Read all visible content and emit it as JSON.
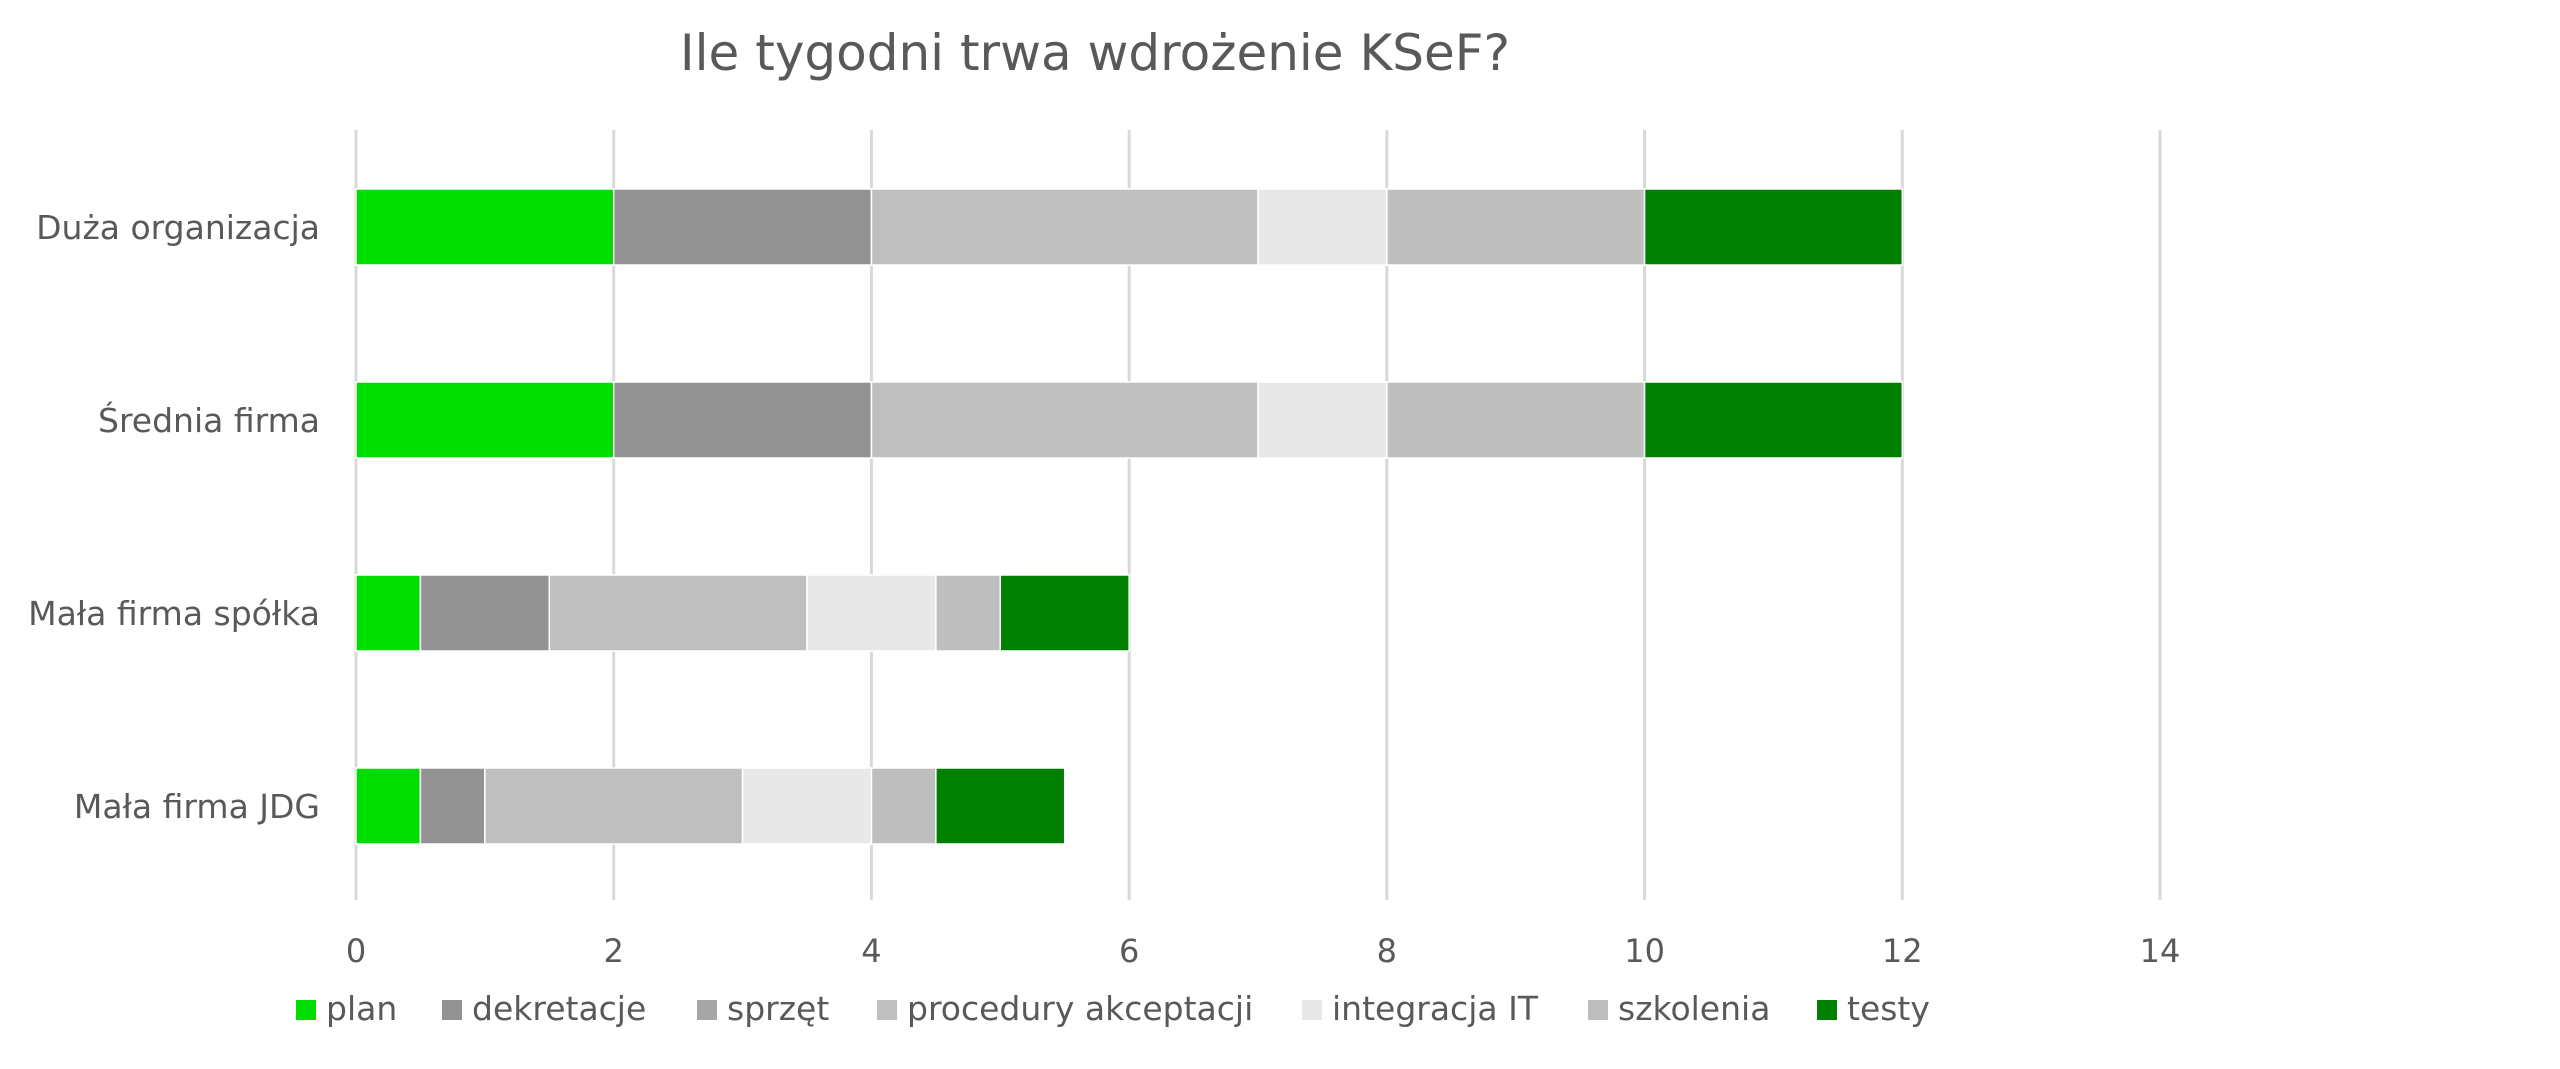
{
  "chart_data": {
    "type": "bar",
    "orientation": "horizontal",
    "stacked": true,
    "title": "Ile tygodni trwa wdrożenie KSeF?",
    "categories": [
      "Duża organizacja",
      "Średnia firma",
      "Mała firma spółka",
      "Mała firma JDG"
    ],
    "series": [
      {
        "name": "plan",
        "color": "#00dd00",
        "values": [
          2,
          2,
          0.5,
          0.5
        ]
      },
      {
        "name": "dekretacje",
        "color": "#929292",
        "values": [
          2,
          2,
          1,
          0.5
        ]
      },
      {
        "name": "sprzęt",
        "color": "#a6a6a6",
        "values": [
          0,
          0,
          0,
          0
        ]
      },
      {
        "name": "procedury akceptacji",
        "color": "#bfbfbf",
        "values": [
          3,
          3,
          2,
          2
        ]
      },
      {
        "name": "integracja IT",
        "color": "#e8e8e8",
        "values": [
          1,
          1,
          1,
          1
        ]
      },
      {
        "name": "szkolenia",
        "color": "#bebebe",
        "values": [
          2,
          2,
          0.5,
          0.5
        ]
      },
      {
        "name": "testy",
        "color": "#008000",
        "values": [
          2,
          2,
          1,
          1
        ]
      }
    ],
    "xlim": [
      0,
      14
    ],
    "xticks": [
      "0",
      "2",
      "4",
      "6",
      "8",
      "10",
      "12",
      "14"
    ],
    "grid": true,
    "legend": "bottom"
  }
}
